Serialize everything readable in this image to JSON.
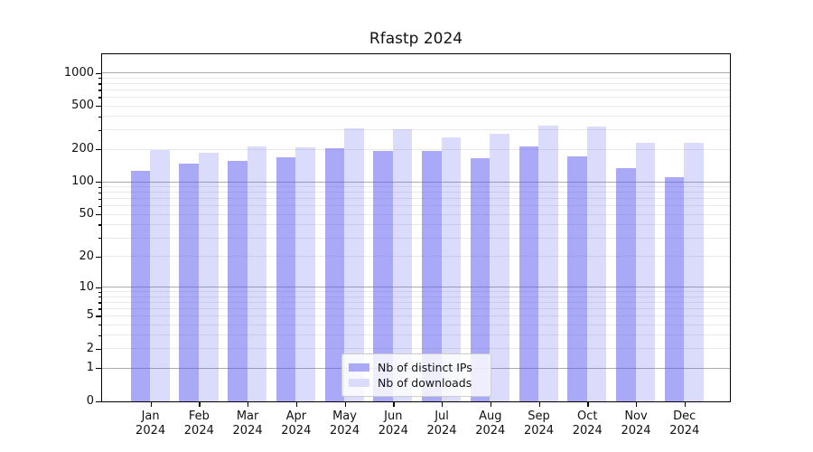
{
  "chart_data": {
    "type": "bar",
    "title": "Rfastp 2024",
    "categories": [
      "Jan",
      "Feb",
      "Mar",
      "Apr",
      "May",
      "Jun",
      "Jul",
      "Aug",
      "Sep",
      "Oct",
      "Nov",
      "Dec"
    ],
    "category_year": "2024",
    "series": [
      {
        "name": "Nb of distinct IPs",
        "color": "rgba(90,90,242,0.52)",
        "legend_color": "#a9a9f8",
        "values": [
          127,
          148,
          157,
          171,
          207,
          192,
          194,
          165,
          212,
          173,
          134,
          111
        ]
      },
      {
        "name": "Nb of downloads",
        "color": "rgba(90,90,242,0.22)",
        "legend_color": "#dbdbfc",
        "values": [
          196,
          188,
          212,
          211,
          312,
          304,
          259,
          276,
          330,
          324,
          230,
          228
        ]
      }
    ],
    "yscale": "log1p",
    "ylim": [
      0,
      1500
    ],
    "ytick_values": [
      0,
      1,
      2,
      5,
      10,
      20,
      50,
      100,
      200,
      500,
      1000
    ],
    "ytick_labels": [
      "0",
      "1",
      "2",
      "5",
      "10",
      "20",
      "50",
      "100",
      "200",
      "500",
      "1000"
    ],
    "grid": "horizontal, minor light + major at powers of 10",
    "legend_position": "lower center",
    "colors": {
      "grid_minor": "#e9e9e9",
      "grid_major": "#ababab",
      "axis": "#000000",
      "text": "#111111",
      "background": "#ffffff"
    }
  }
}
